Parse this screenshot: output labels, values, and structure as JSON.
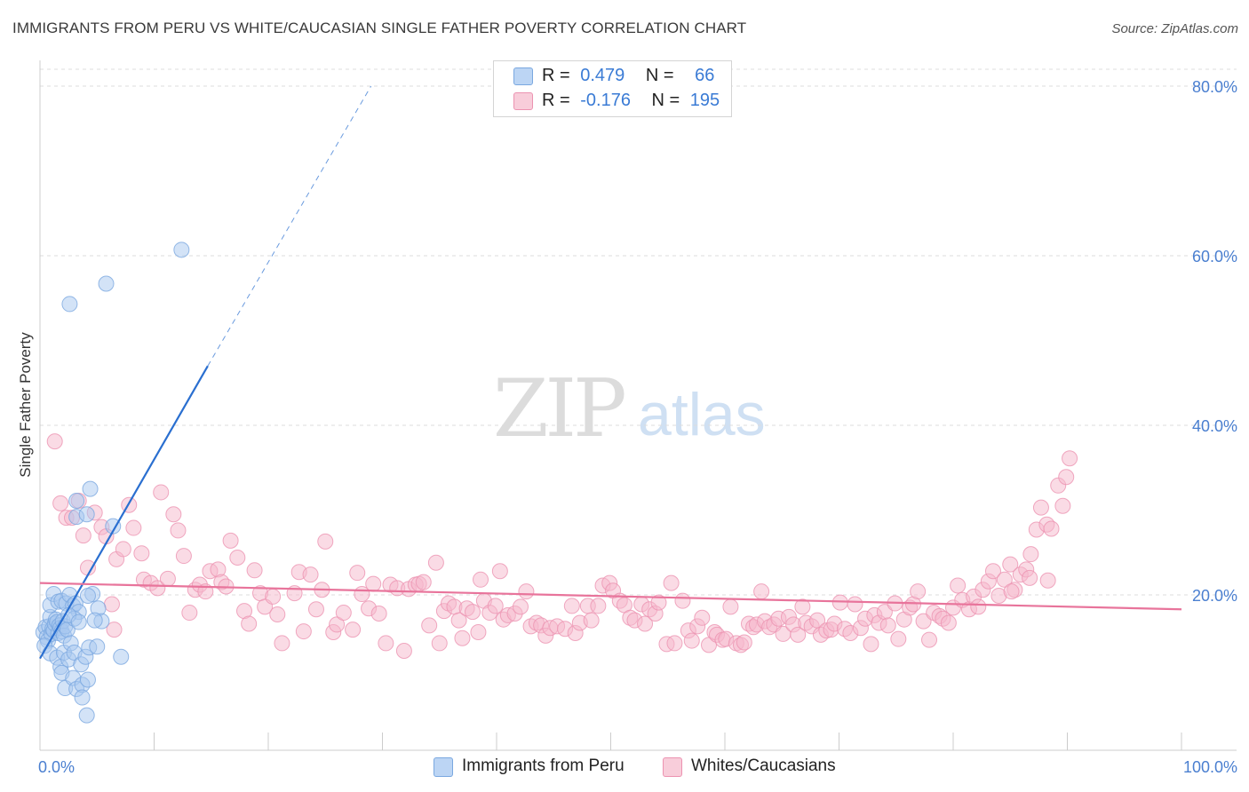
{
  "header": {
    "title": "IMMIGRANTS FROM PERU VS WHITE/CAUCASIAN SINGLE FATHER POVERTY CORRELATION CHART",
    "source": "Source: ZipAtlas.com"
  },
  "watermark": {
    "zip": "ZIP",
    "atlas": "atlas"
  },
  "legend": {
    "rows": [
      {
        "r_label": "R =",
        "r_value": "0.479",
        "n_label": "N =",
        "n_value": "66",
        "color": "#a8c8f0"
      },
      {
        "r_label": "R =",
        "r_value": "-0.176",
        "n_label": "N =",
        "n_value": "195",
        "color": "#f5b8cb"
      }
    ]
  },
  "bottom_legend": [
    {
      "label": "Immigrants from Peru",
      "color": "#a8c8f0"
    },
    {
      "label": "Whites/Caucasians",
      "color": "#f5b8cb"
    }
  ],
  "chart_data": {
    "type": "scatter",
    "ylabel": "Single Father Poverty",
    "xlim": [
      0,
      100
    ],
    "ylim": [
      0,
      80
    ],
    "x_tick_labels": [
      "0.0%",
      "100.0%"
    ],
    "y_ticks": [
      20,
      40,
      60,
      80
    ],
    "y_tick_labels": [
      "20.0%",
      "40.0%",
      "60.0%",
      "80.0%"
    ],
    "grid": "horizontal dashed",
    "series": [
      {
        "name": "Immigrants from Peru",
        "color": "#a8c8f0",
        "stroke": "#7aa8e0",
        "trend_color": "#2a6fd0",
        "trend": {
          "x0": 0,
          "y0": 12.5,
          "x1": 14.7,
          "y1": 47.0,
          "dash_to_x": 29.0,
          "dash_to_y": 80.0
        },
        "points": [
          [
            0.3,
            15.6
          ],
          [
            0.5,
            16.2
          ],
          [
            0.6,
            15.0
          ],
          [
            0.7,
            14.6
          ],
          [
            0.8,
            16.3
          ],
          [
            0.9,
            17.4
          ],
          [
            1.0,
            15.4
          ],
          [
            1.1,
            16.0
          ],
          [
            1.2,
            15.8
          ],
          [
            1.3,
            16.6
          ],
          [
            1.4,
            17.1
          ],
          [
            1.5,
            16.8
          ],
          [
            1.6,
            15.5
          ],
          [
            1.7,
            16.4
          ],
          [
            1.8,
            16.1
          ],
          [
            1.9,
            15.7
          ],
          [
            2.0,
            16.9
          ],
          [
            2.1,
            15.2
          ],
          [
            2.2,
            16.3
          ],
          [
            2.4,
            15.9
          ],
          [
            0.9,
            18.8
          ],
          [
            1.2,
            20.1
          ],
          [
            1.6,
            19.2
          ],
          [
            1.9,
            19.3
          ],
          [
            2.3,
            19.0
          ],
          [
            2.6,
            20.0
          ],
          [
            2.9,
            18.7
          ],
          [
            3.1,
            19.0
          ],
          [
            0.4,
            14.0
          ],
          [
            0.9,
            13.1
          ],
          [
            1.5,
            12.6
          ],
          [
            1.8,
            11.5
          ],
          [
            2.1,
            13.2
          ],
          [
            2.5,
            12.4
          ],
          [
            2.7,
            14.3
          ],
          [
            3.0,
            13.2
          ],
          [
            1.9,
            10.8
          ],
          [
            2.2,
            9.0
          ],
          [
            2.9,
            10.2
          ],
          [
            3.2,
            8.9
          ],
          [
            3.6,
            11.8
          ],
          [
            3.7,
            9.4
          ],
          [
            4.0,
            12.7
          ],
          [
            4.2,
            10.0
          ],
          [
            3.7,
            7.9
          ],
          [
            4.1,
            5.8
          ],
          [
            4.3,
            13.8
          ],
          [
            5.0,
            13.9
          ],
          [
            7.1,
            12.7
          ],
          [
            4.6,
            20.1
          ],
          [
            5.1,
            18.4
          ],
          [
            5.4,
            16.9
          ],
          [
            4.2,
            19.9
          ],
          [
            3.4,
            18.0
          ],
          [
            3.2,
            29.2
          ],
          [
            4.1,
            29.5
          ],
          [
            3.2,
            31.1
          ],
          [
            4.4,
            32.5
          ],
          [
            6.4,
            28.1
          ],
          [
            2.6,
            54.3
          ],
          [
            5.8,
            56.7
          ],
          [
            12.4,
            60.7
          ],
          [
            3.0,
            17.2
          ],
          [
            2.5,
            17.6
          ],
          [
            3.4,
            16.8
          ],
          [
            4.8,
            17.0
          ]
        ]
      },
      {
        "name": "Whites/Caucasians",
        "color": "#f5b8cb",
        "stroke": "#ec93b1",
        "trend_color": "#e8749b",
        "trend": {
          "x0": 0,
          "y0": 21.4,
          "x1": 100,
          "y1": 18.3
        },
        "points": [
          [
            1.3,
            38.1
          ],
          [
            1.8,
            30.8
          ],
          [
            2.3,
            29.1
          ],
          [
            2.8,
            29.1
          ],
          [
            3.4,
            31.1
          ],
          [
            3.8,
            27.0
          ],
          [
            4.2,
            23.2
          ],
          [
            4.8,
            29.7
          ],
          [
            5.4,
            28.0
          ],
          [
            5.8,
            26.9
          ],
          [
            6.3,
            18.9
          ],
          [
            6.5,
            15.9
          ],
          [
            6.7,
            24.2
          ],
          [
            7.3,
            25.4
          ],
          [
            7.8,
            30.6
          ],
          [
            8.2,
            27.9
          ],
          [
            8.9,
            24.9
          ],
          [
            9.1,
            21.8
          ],
          [
            9.7,
            21.4
          ],
          [
            10.3,
            20.8
          ],
          [
            10.6,
            32.1
          ],
          [
            11.2,
            21.9
          ],
          [
            11.7,
            29.5
          ],
          [
            12.1,
            27.6
          ],
          [
            12.6,
            24.6
          ],
          [
            13.1,
            17.9
          ],
          [
            13.6,
            20.6
          ],
          [
            14.0,
            21.2
          ],
          [
            14.5,
            20.4
          ],
          [
            14.9,
            22.8
          ],
          [
            15.6,
            23.0
          ],
          [
            15.9,
            21.5
          ],
          [
            16.3,
            21.0
          ],
          [
            16.7,
            26.4
          ],
          [
            17.3,
            24.4
          ],
          [
            17.9,
            18.1
          ],
          [
            18.3,
            16.6
          ],
          [
            18.8,
            22.9
          ],
          [
            19.3,
            20.2
          ],
          [
            19.7,
            18.6
          ],
          [
            20.4,
            19.8
          ],
          [
            20.8,
            17.7
          ],
          [
            21.2,
            14.3
          ],
          [
            22.3,
            20.2
          ],
          [
            22.7,
            22.7
          ],
          [
            23.1,
            15.7
          ],
          [
            23.7,
            22.4
          ],
          [
            24.2,
            18.3
          ],
          [
            24.7,
            20.6
          ],
          [
            25.0,
            26.3
          ],
          [
            25.7,
            15.6
          ],
          [
            26.0,
            16.5
          ],
          [
            26.6,
            17.9
          ],
          [
            27.4,
            15.9
          ],
          [
            27.8,
            22.6
          ],
          [
            28.2,
            20.1
          ],
          [
            28.8,
            18.4
          ],
          [
            29.2,
            21.3
          ],
          [
            29.7,
            17.8
          ],
          [
            30.3,
            14.3
          ],
          [
            30.7,
            21.2
          ],
          [
            31.3,
            20.8
          ],
          [
            31.9,
            13.4
          ],
          [
            32.3,
            20.7
          ],
          [
            32.9,
            21.2
          ],
          [
            33.2,
            21.3
          ],
          [
            33.6,
            21.5
          ],
          [
            34.1,
            16.4
          ],
          [
            34.7,
            23.8
          ],
          [
            35.0,
            14.3
          ],
          [
            35.4,
            18.1
          ],
          [
            35.8,
            19.0
          ],
          [
            36.3,
            18.6
          ],
          [
            36.7,
            17.0
          ],
          [
            37.0,
            14.9
          ],
          [
            37.4,
            18.4
          ],
          [
            37.9,
            18.0
          ],
          [
            38.4,
            15.6
          ],
          [
            38.6,
            21.8
          ],
          [
            38.9,
            19.3
          ],
          [
            39.4,
            17.9
          ],
          [
            39.9,
            18.7
          ],
          [
            40.3,
            22.8
          ],
          [
            40.6,
            17.1
          ],
          [
            41.0,
            17.6
          ],
          [
            41.6,
            17.8
          ],
          [
            42.1,
            18.6
          ],
          [
            42.6,
            20.4
          ],
          [
            43.0,
            16.3
          ],
          [
            43.5,
            16.7
          ],
          [
            43.9,
            16.4
          ],
          [
            44.3,
            15.2
          ],
          [
            44.7,
            16.1
          ],
          [
            45.3,
            16.3
          ],
          [
            46.0,
            16.0
          ],
          [
            46.6,
            18.7
          ],
          [
            46.9,
            15.5
          ],
          [
            47.3,
            16.7
          ],
          [
            48.0,
            18.7
          ],
          [
            48.3,
            17.0
          ],
          [
            48.9,
            18.7
          ],
          [
            49.3,
            21.1
          ],
          [
            49.9,
            21.4
          ],
          [
            50.2,
            20.5
          ],
          [
            50.8,
            19.3
          ],
          [
            51.2,
            18.8
          ],
          [
            51.7,
            17.3
          ],
          [
            52.1,
            17.0
          ],
          [
            52.7,
            18.9
          ],
          [
            53.0,
            16.6
          ],
          [
            53.4,
            18.3
          ],
          [
            53.9,
            17.8
          ],
          [
            54.2,
            19.1
          ],
          [
            54.9,
            14.2
          ],
          [
            55.3,
            21.4
          ],
          [
            55.6,
            14.3
          ],
          [
            56.3,
            19.3
          ],
          [
            56.8,
            15.8
          ],
          [
            57.1,
            14.6
          ],
          [
            57.6,
            16.3
          ],
          [
            58.0,
            17.3
          ],
          [
            58.6,
            14.1
          ],
          [
            59.1,
            15.6
          ],
          [
            59.3,
            15.3
          ],
          [
            59.8,
            14.7
          ],
          [
            60.1,
            14.8
          ],
          [
            60.5,
            18.6
          ],
          [
            61.0,
            14.3
          ],
          [
            61.4,
            14.1
          ],
          [
            61.7,
            14.4
          ],
          [
            62.1,
            16.6
          ],
          [
            62.5,
            16.2
          ],
          [
            62.8,
            16.5
          ],
          [
            63.2,
            20.4
          ],
          [
            63.5,
            16.9
          ],
          [
            63.9,
            16.2
          ],
          [
            64.3,
            16.5
          ],
          [
            64.7,
            17.2
          ],
          [
            65.1,
            15.4
          ],
          [
            65.6,
            17.4
          ],
          [
            66.0,
            16.5
          ],
          [
            66.4,
            15.3
          ],
          [
            66.8,
            18.6
          ],
          [
            67.1,
            16.7
          ],
          [
            67.6,
            16.3
          ],
          [
            68.1,
            17.0
          ],
          [
            68.4,
            15.3
          ],
          [
            68.9,
            15.8
          ],
          [
            69.3,
            15.9
          ],
          [
            69.6,
            16.6
          ],
          [
            70.1,
            19.1
          ],
          [
            70.5,
            16.0
          ],
          [
            71.0,
            15.5
          ],
          [
            71.4,
            18.9
          ],
          [
            71.9,
            16.1
          ],
          [
            72.3,
            17.2
          ],
          [
            72.8,
            14.2
          ],
          [
            73.1,
            17.6
          ],
          [
            73.5,
            16.7
          ],
          [
            74.0,
            18.0
          ],
          [
            74.3,
            16.4
          ],
          [
            74.9,
            19.0
          ],
          [
            75.2,
            14.8
          ],
          [
            75.7,
            17.1
          ],
          [
            76.2,
            18.5
          ],
          [
            76.5,
            18.9
          ],
          [
            76.9,
            20.4
          ],
          [
            77.4,
            16.9
          ],
          [
            77.9,
            14.7
          ],
          [
            78.3,
            17.9
          ],
          [
            78.8,
            17.5
          ],
          [
            79.1,
            17.2
          ],
          [
            79.6,
            16.7
          ],
          [
            80.0,
            18.5
          ],
          [
            80.4,
            21.1
          ],
          [
            80.8,
            19.4
          ],
          [
            81.4,
            18.3
          ],
          [
            81.8,
            19.8
          ],
          [
            82.2,
            18.6
          ],
          [
            82.6,
            20.6
          ],
          [
            83.1,
            21.6
          ],
          [
            83.5,
            22.8
          ],
          [
            84.0,
            19.9
          ],
          [
            84.5,
            21.8
          ],
          [
            85.0,
            23.6
          ],
          [
            85.4,
            20.6
          ],
          [
            85.9,
            22.4
          ],
          [
            86.4,
            23.0
          ],
          [
            86.8,
            24.8
          ],
          [
            87.3,
            27.7
          ],
          [
            87.7,
            30.3
          ],
          [
            88.2,
            28.3
          ],
          [
            88.6,
            27.8
          ],
          [
            89.2,
            32.9
          ],
          [
            89.6,
            30.5
          ],
          [
            89.9,
            33.9
          ],
          [
            90.2,
            36.1
          ],
          [
            88.3,
            21.7
          ],
          [
            86.7,
            22.0
          ],
          [
            85.1,
            20.4
          ]
        ]
      }
    ]
  }
}
